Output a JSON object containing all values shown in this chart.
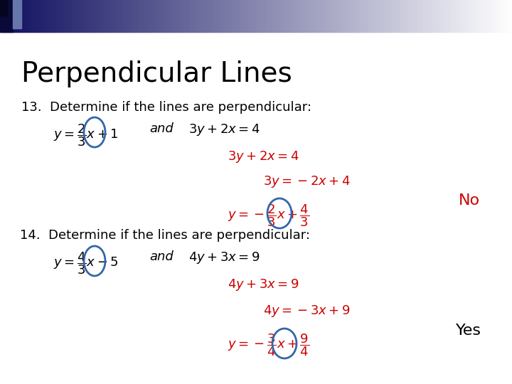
{
  "title": "Perpendicular Lines",
  "background_color": "#ffffff",
  "body_color": "#000000",
  "red_color": "#cc0000",
  "blue_ellipse_color": "#3366aa",
  "q13_label": "13.  Determine if the lines are perpendicular:",
  "q13_eq1": "$y = \\dfrac{2}{3}x + 1$",
  "q13_and": "and",
  "q13_eq2": "$3y + 2x = 4$",
  "q13_step1": "$3y + 2x = 4$",
  "q13_step2": "$3y = -2x + 4$",
  "q13_step3": "$y = -\\dfrac{2}{3}x + \\dfrac{4}{3}$",
  "q13_answer": "No",
  "q14_label": "14.  Determine if the lines are perpendicular:",
  "q14_eq1": "$y = \\dfrac{4}{3}x - 5$",
  "q14_and": "and",
  "q14_eq2": "$4y + 3x = 9$",
  "q14_step1": "$4y + 3x = 9$",
  "q14_step2": "$4y = -3x + 9$",
  "q14_step3": "$y = -\\dfrac{3}{4}x + \\dfrac{9}{4}$",
  "q14_answer": "Yes",
  "title_fontsize": 28,
  "body_fontsize": 13,
  "answer_fontsize": 16
}
